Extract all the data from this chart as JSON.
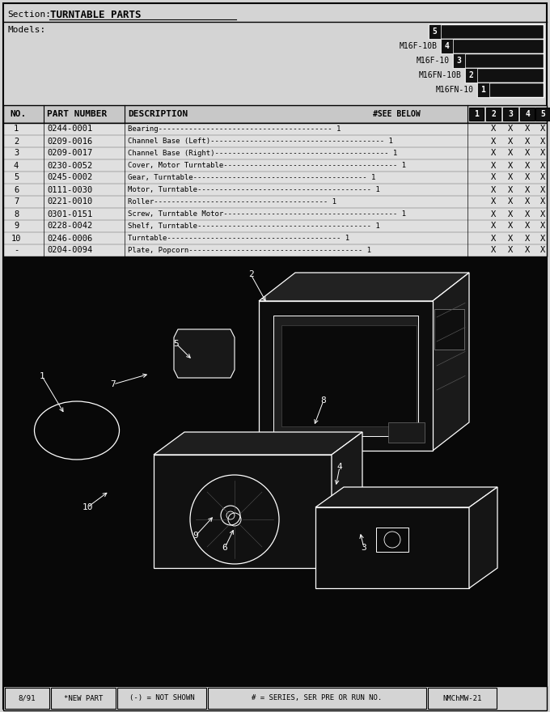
{
  "title_section": "Section:",
  "title_text": "TURNTABLE PARTS",
  "models_label": "Models:",
  "models": [
    "M16F-10B",
    "M16F-10",
    "M16FN-10B",
    "M16FN-10"
  ],
  "model_numbers": [
    "4",
    "3",
    "2",
    "1"
  ],
  "col_numbers": [
    "1",
    "2",
    "3",
    "4",
    "5"
  ],
  "header_cols": [
    "NO.",
    "PART NUMBER",
    "DESCRIPTION",
    "#SEE BELOW"
  ],
  "parts": [
    [
      "1",
      "0244-0001",
      "Bearing",
      "1",
      "X",
      "X",
      "X",
      "X"
    ],
    [
      "2",
      "0209-0016",
      "Channel Base (Left)",
      "1",
      "X",
      "X",
      "X",
      "X"
    ],
    [
      "3",
      "0209-0017",
      "Channel Base (Right)",
      "1",
      "X",
      "X",
      "X",
      "X"
    ],
    [
      "4",
      "0230-0052",
      "Cover, Motor Turntable",
      "1",
      "X",
      "X",
      "X",
      "X"
    ],
    [
      "5",
      "0245-0002",
      "Gear, Turntable",
      "1",
      "X",
      "X",
      "X",
      "X"
    ],
    [
      "6",
      "0111-0030",
      "Motor, Turntable",
      "1",
      "X",
      "X",
      "X",
      "X"
    ],
    [
      "7",
      "0221-0010",
      "Roller",
      "1",
      "X",
      "X",
      "X",
      "X"
    ],
    [
      "8",
      "0301-0151",
      "Screw, Turntable Motor",
      "1",
      "X",
      "X",
      "X",
      "X"
    ],
    [
      "9",
      "0228-0042",
      "Shelf, Turntable",
      "1",
      "X",
      "X",
      "X",
      "X"
    ],
    [
      "10",
      "0246-0006",
      "Turntable",
      "1",
      "X",
      "X",
      "X",
      "X"
    ],
    [
      "-",
      "0204-0094",
      "Plate, Popcorn",
      "1",
      "X",
      "X",
      "X",
      "X"
    ]
  ],
  "footer": [
    "8/91",
    "*NEW PART",
    "(-) = NOT SHOWN",
    "# = SERIES, SER PRE OR RUN NO.",
    "NMChMW-21"
  ],
  "footer_widths": [
    55,
    80,
    110,
    270,
    85
  ],
  "bg_light": "#d4d4d4",
  "bg_black": "#080808",
  "text_dark": "#000000",
  "text_white": "#ffffff",
  "stair_bg": "#111111"
}
